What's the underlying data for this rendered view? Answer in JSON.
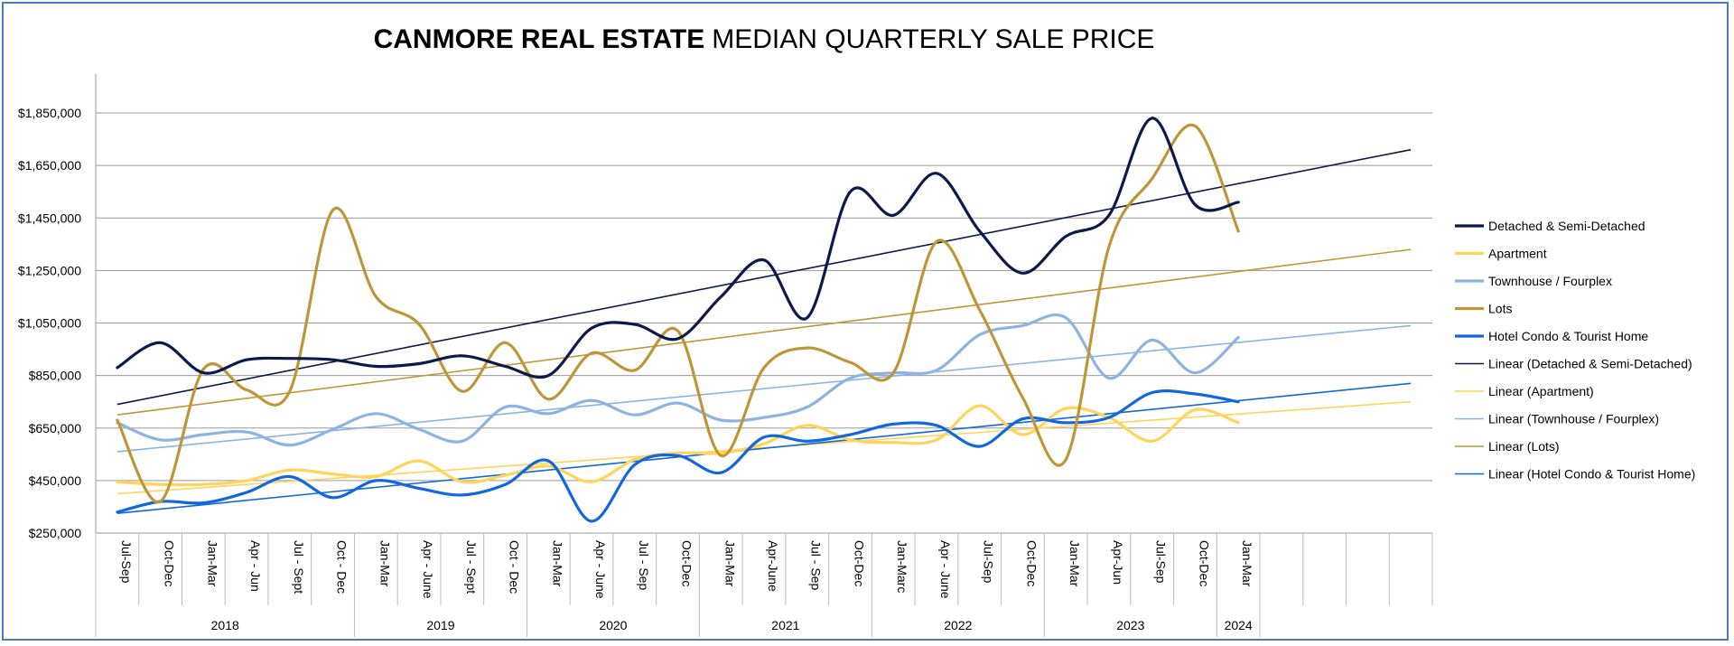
{
  "chart_data": {
    "type": "line",
    "title_bold": "CANMORE REAL ESTATE",
    "title_rest": "MEDIAN QUARTERLY SALE PRICE",
    "ylim": [
      250000,
      1950000
    ],
    "yticks": [
      250000,
      450000,
      650000,
      850000,
      1050000,
      1250000,
      1450000,
      1650000,
      1850000
    ],
    "ytick_labels": [
      "$250,000",
      "$450,000",
      "$650,000",
      "$850,000",
      "$1,050,000",
      "$1,250,000",
      "$1,450,000",
      "$1,650,000",
      "$1,850,000"
    ],
    "categories": [
      "Jul-Sep",
      "Oct-Dec",
      "Jan-Mar",
      "Apr - Jun",
      "Jul - Sept",
      "Oct - Dec",
      "Jan-Mar",
      "Apr - June",
      "Jul - Sept",
      "Oct - Dec",
      "Jan-Mar",
      "Apr - June",
      "Jul - Sep",
      "Oct-Dec",
      "Jan-Mar",
      "Apr-June",
      "Jul - Sep",
      "Oct-Dec",
      "Jan-Marc",
      "Apr - June",
      "Jul-Sep",
      "Oct-Dec",
      "Jan-Mar",
      "Apr-Jun",
      "Jul-Sep",
      "Oct-Dec",
      "Jan-Mar"
    ],
    "total_slots": 31,
    "years": [
      {
        "label": "2018",
        "start": 0,
        "end": 5
      },
      {
        "label": "2019",
        "start": 6,
        "end": 9
      },
      {
        "label": "2020",
        "start": 10,
        "end": 13
      },
      {
        "label": "2021",
        "start": 14,
        "end": 17
      },
      {
        "label": "2022",
        "start": 18,
        "end": 21
      },
      {
        "label": "2023",
        "start": 22,
        "end": 25
      },
      {
        "label": "2024",
        "start": 26,
        "end": 26
      }
    ],
    "series": [
      {
        "name": "Detached & Semi-Detached",
        "color": "#0b1a4a",
        "values": [
          880000,
          975000,
          860000,
          910000,
          915000,
          910000,
          885000,
          895000,
          925000,
          885000,
          850000,
          1030000,
          1045000,
          990000,
          1150000,
          1290000,
          1070000,
          1550000,
          1460000,
          1620000,
          1400000,
          1240000,
          1380000,
          1460000,
          1830000,
          1500000,
          1510000
        ]
      },
      {
        "name": "Apartment",
        "color": "#ffd45a",
        "values": [
          445000,
          435000,
          435000,
          450000,
          490000,
          475000,
          465000,
          525000,
          445000,
          470000,
          505000,
          445000,
          530000,
          555000,
          555000,
          590000,
          660000,
          605000,
          595000,
          605000,
          735000,
          625000,
          725000,
          690000,
          600000,
          720000,
          670000
        ]
      },
      {
        "name": "Townhouse / Fourplex",
        "color": "#8db3e2",
        "values": [
          670000,
          605000,
          625000,
          635000,
          585000,
          645000,
          705000,
          645000,
          600000,
          730000,
          705000,
          755000,
          700000,
          745000,
          680000,
          690000,
          730000,
          840000,
          860000,
          870000,
          1005000,
          1040000,
          1070000,
          840000,
          985000,
          860000,
          995000
        ]
      },
      {
        "name": "Lots",
        "color": "#bf9637",
        "values": [
          680000,
          370000,
          875000,
          795000,
          790000,
          1480000,
          1150000,
          1045000,
          790000,
          975000,
          760000,
          935000,
          870000,
          1020000,
          545000,
          880000,
          955000,
          900000,
          860000,
          1360000,
          1100000,
          765000,
          530000,
          1340000,
          1600000,
          1800000,
          1400000
        ]
      },
      {
        "name": "Hotel Condo & Tourist Home",
        "color": "#1367dd",
        "values": [
          330000,
          370000,
          365000,
          405000,
          465000,
          385000,
          450000,
          420000,
          395000,
          435000,
          525000,
          295000,
          510000,
          545000,
          480000,
          615000,
          600000,
          625000,
          665000,
          660000,
          580000,
          685000,
          670000,
          690000,
          785000,
          780000,
          750000
        ]
      }
    ],
    "trendlines": [
      {
        "name": "Linear (Detached & Semi-Detached)",
        "color": "#0b1a4a",
        "start": 740000,
        "end": 1710000
      },
      {
        "name": "Linear (Apartment)",
        "color": "#ffd45a",
        "start": 400000,
        "end": 750000
      },
      {
        "name": "Linear (Townhouse / Fourplex)",
        "color": "#8db3e2",
        "start": 560000,
        "end": 1040000
      },
      {
        "name": "Linear (Lots)",
        "color": "#bf9637",
        "start": 700000,
        "end": 1330000
      },
      {
        "name": "Linear (Hotel Condo & Tourist Home)",
        "color": "#1367dd",
        "start": 325000,
        "end": 820000
      }
    ],
    "legend_position": "right"
  }
}
